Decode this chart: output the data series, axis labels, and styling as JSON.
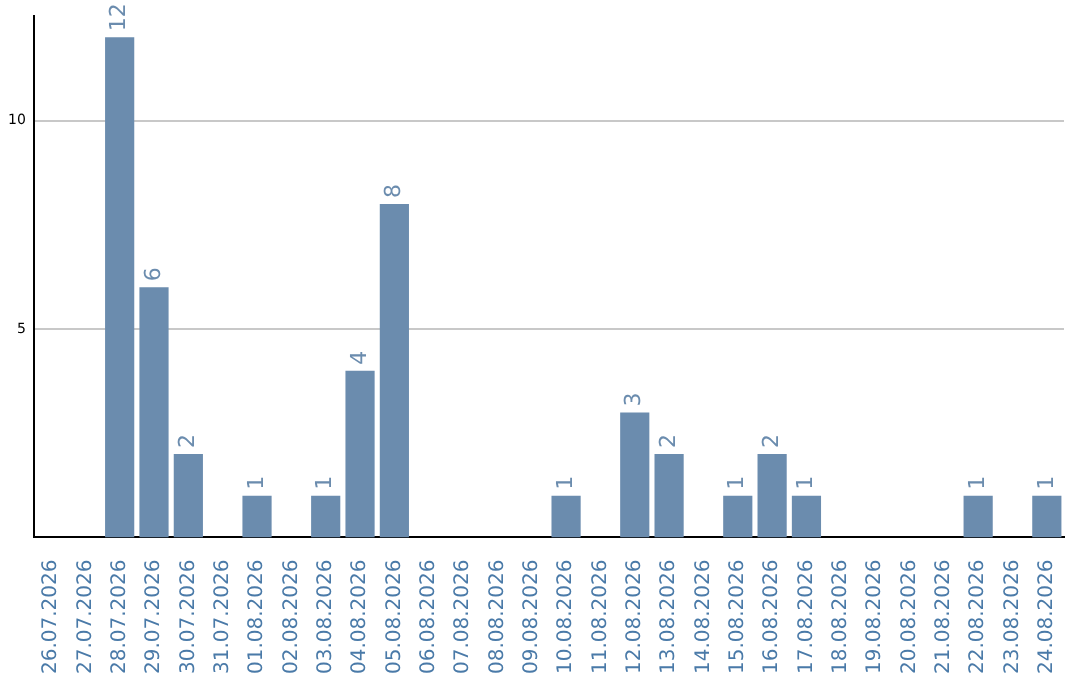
{
  "chart_data": {
    "type": "bar",
    "categories": [
      "26.07.2026",
      "27.07.2026",
      "28.07.2026",
      "29.07.2026",
      "30.07.2026",
      "31.07.2026",
      "01.08.2026",
      "02.08.2026",
      "03.08.2026",
      "04.08.2026",
      "05.08.2026",
      "06.08.2026",
      "07.08.2026",
      "08.08.2026",
      "09.08.2026",
      "10.08.2026",
      "11.08.2026",
      "12.08.2026",
      "13.08.2026",
      "14.08.2026",
      "15.08.2026",
      "16.08.2026",
      "17.08.2026",
      "18.08.2026",
      "19.08.2026",
      "20.08.2026",
      "21.08.2026",
      "22.08.2026",
      "23.08.2026",
      "24.08.2026"
    ],
    "values": [
      null,
      null,
      12,
      6,
      2,
      null,
      1,
      null,
      1,
      4,
      8,
      null,
      null,
      null,
      null,
      1,
      null,
      3,
      2,
      null,
      1,
      2,
      1,
      null,
      null,
      null,
      null,
      1,
      null,
      1
    ],
    "color": "#6b8cae",
    "ylim": [
      0,
      12.5
    ],
    "yticks": [
      5,
      10
    ],
    "grid": "y",
    "legend": false,
    "data_labels": true
  }
}
